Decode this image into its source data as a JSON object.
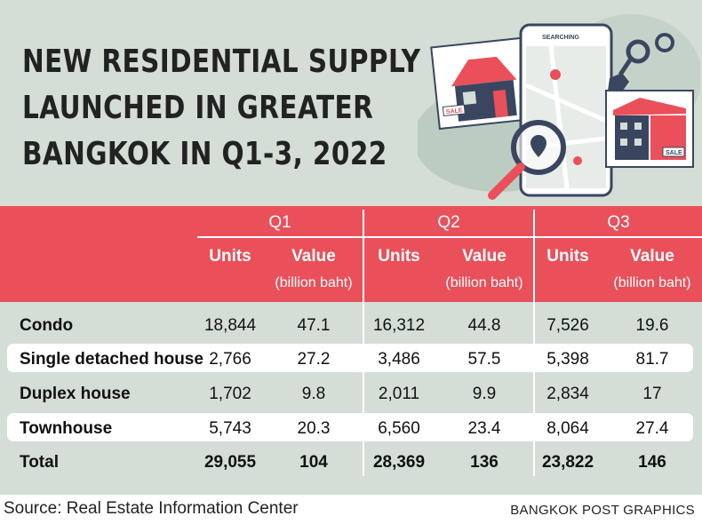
{
  "title_lines": [
    "NEW RESIDENTIAL SUPPLY",
    "LAUNCHED IN GREATER",
    "BANGKOK IN Q1-3, 2022"
  ],
  "illustration": {
    "phone_header": "SEARCHING",
    "sale_sign_1": "SALE",
    "sale_sign_2": "SALE"
  },
  "colors": {
    "background": "#d4ddd6",
    "header": "#e9505a",
    "row_highlight": "#ffffff",
    "text": "#111111"
  },
  "chart_data": {
    "type": "table",
    "title": "NEW RESIDENTIAL SUPPLY LAUNCHED IN GREATER BANGKOK IN Q1-3, 2022",
    "quarters": [
      "Q1",
      "Q2",
      "Q3"
    ],
    "units_label": "Units",
    "value_label": "Value",
    "value_unit": "(billion baht)",
    "rows": [
      {
        "label": "Condo",
        "values": [
          "18,844",
          "47.1",
          "16,312",
          "44.8",
          "7,526",
          "19.6"
        ]
      },
      {
        "label": "Single detached house",
        "values": [
          "2,766",
          "27.2",
          "3,486",
          "57.5",
          "5,398",
          "81.7"
        ]
      },
      {
        "label": "Duplex house",
        "values": [
          "1,702",
          "9.8",
          "2,011",
          "9.9",
          "2,834",
          "17"
        ]
      },
      {
        "label": "Townhouse",
        "values": [
          "5,743",
          "20.3",
          "6,560",
          "23.4",
          "8,064",
          "27.4"
        ]
      }
    ],
    "total": {
      "label": "Total",
      "values": [
        "29,055",
        "104",
        "28,369",
        "136",
        "23,822",
        "146"
      ]
    }
  },
  "source": "Source: Real Estate Information Center",
  "credit": "BANGKOK POST GRAPHICS"
}
